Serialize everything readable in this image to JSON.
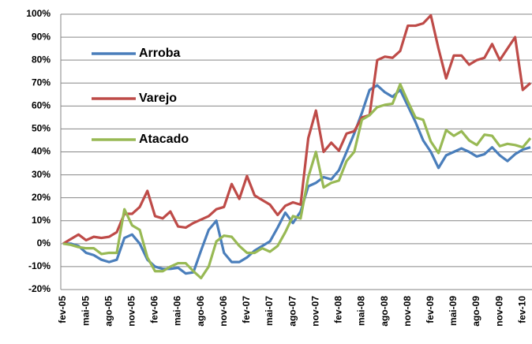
{
  "chart_data": {
    "type": "line",
    "categories": [
      "fev-05",
      null,
      null,
      "mai-05",
      null,
      null,
      "ago-05",
      null,
      null,
      "nov-05",
      null,
      null,
      "fev-06",
      null,
      null,
      "mai-06",
      null,
      null,
      "ago-06",
      null,
      null,
      "nov-06",
      null,
      null,
      "fev-07",
      null,
      null,
      "mai-07",
      null,
      null,
      "ago-07",
      null,
      null,
      "nov-07",
      null,
      null,
      "fev-08",
      null,
      null,
      "mai-08",
      null,
      null,
      "ago-08",
      null,
      null,
      "nov-08",
      null,
      null,
      "fev-09",
      null,
      null,
      "mai-09",
      null,
      null,
      "ago-09",
      null,
      null,
      "nov-09",
      null,
      null,
      "fev-10",
      null
    ],
    "series": [
      {
        "name": "Arroba",
        "color": "#4a7ebb",
        "values": [
          0,
          0,
          -1,
          -4,
          -5,
          -7,
          -8,
          -7,
          2.5,
          4,
          0,
          -7,
          -10,
          -11,
          -11,
          -10.5,
          -13,
          -12.5,
          -3,
          6,
          10,
          -4,
          -8,
          -8,
          -6,
          -3,
          -1,
          1,
          7,
          13.5,
          9,
          14,
          25,
          26.5,
          29,
          28,
          32,
          40,
          48,
          57,
          67,
          69,
          66,
          64,
          67,
          60,
          53,
          45,
          40,
          33,
          38.5,
          40,
          41.5,
          40,
          38,
          39,
          42,
          38.5,
          36,
          39,
          41,
          42
        ]
      },
      {
        "name": "Varejo",
        "color": "#be4b48",
        "values": [
          0,
          2,
          4,
          1.5,
          3,
          2.5,
          3,
          5,
          13,
          13,
          16,
          23,
          12,
          11,
          14,
          7.5,
          7,
          9,
          10.5,
          12,
          15,
          16,
          26,
          19.5,
          29.5,
          21,
          19,
          17,
          12.5,
          16.5,
          18,
          17,
          46,
          58,
          40,
          44,
          40.5,
          48,
          49,
          55,
          56,
          80,
          81.5,
          81,
          84,
          95,
          95,
          96,
          99.5,
          85,
          72,
          82,
          82,
          78,
          80,
          81,
          87,
          80,
          85,
          90,
          67,
          70
        ]
      },
      {
        "name": "Atacado",
        "color": "#98b954",
        "values": [
          0,
          -0.5,
          -1.5,
          -2,
          -2,
          -4.5,
          -4,
          -4,
          15,
          8,
          6,
          -6,
          -12,
          -12,
          -10,
          -8.5,
          -8.5,
          -12,
          -15,
          -10,
          1,
          3.5,
          3,
          -1,
          -4,
          -4,
          -2,
          -3.5,
          -1,
          5,
          12,
          11,
          29,
          40,
          24.5,
          26.5,
          27.5,
          36,
          40,
          54,
          56,
          59.5,
          60.5,
          61,
          69.5,
          62,
          55,
          54,
          44.5,
          39.5,
          49.5,
          47,
          49,
          45,
          43,
          47.5,
          47,
          42.5,
          43.5,
          43,
          42,
          46
        ]
      }
    ],
    "ylim": [
      -20,
      100
    ],
    "yticks": [
      {
        "value": -20,
        "label": "-20%"
      },
      {
        "value": -10,
        "label": "-10%"
      },
      {
        "value": 0,
        "label": "0%"
      },
      {
        "value": 10,
        "label": "10%"
      },
      {
        "value": 20,
        "label": "20%"
      },
      {
        "value": 30,
        "label": "30%"
      },
      {
        "value": 40,
        "label": "40%"
      },
      {
        "value": 50,
        "label": "50%"
      },
      {
        "value": 60,
        "label": "60%"
      },
      {
        "value": 70,
        "label": "70%"
      },
      {
        "value": 80,
        "label": "80%"
      },
      {
        "value": 90,
        "label": "90%"
      },
      {
        "value": 100,
        "label": "100%"
      }
    ],
    "grid": true,
    "legend": "upper-left"
  }
}
